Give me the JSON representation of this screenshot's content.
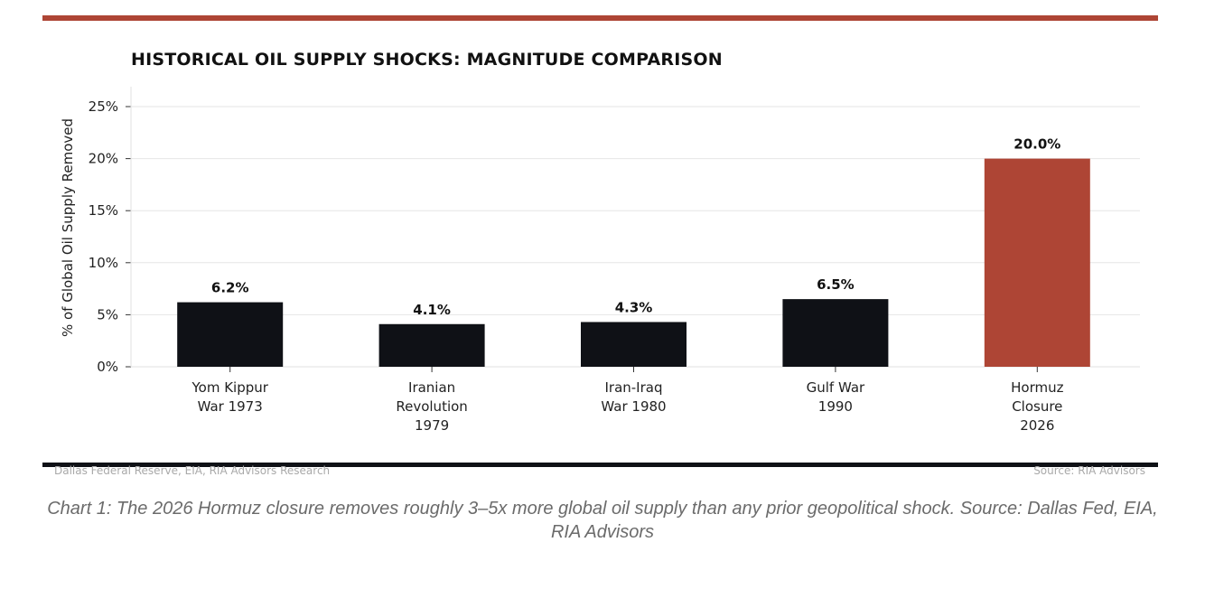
{
  "colors": {
    "accent_rule": "#ae4535",
    "bar_dark": "#0f1116",
    "bar_highlight": "#ae4535",
    "bottom_rule": "#0f1116",
    "grid": "#e6e6e6"
  },
  "chart_data": {
    "type": "bar",
    "title": "HISTORICAL OIL SUPPLY SHOCKS: MAGNITUDE COMPARISON",
    "xlabel": "",
    "ylabel": "% of Global Oil Supply Removed",
    "ylim": [
      0,
      25
    ],
    "yticks": [
      "0%",
      "5%",
      "10%",
      "15%",
      "20%",
      "25%"
    ],
    "ytick_values": [
      0,
      5,
      10,
      15,
      20,
      25
    ],
    "grid": true,
    "categories": [
      [
        "Yom Kippur",
        "War 1973"
      ],
      [
        "Iranian",
        "Revolution",
        "1979"
      ],
      [
        "Iran-Iraq",
        "War 1980"
      ],
      [
        "Gulf War",
        "1990"
      ],
      [
        "Hormuz",
        "Closure",
        "2026"
      ]
    ],
    "values": [
      6.2,
      4.1,
      4.3,
      6.5,
      20.0
    ],
    "value_labels": [
      "6.2%",
      "4.1%",
      "4.3%",
      "6.5%",
      "20.0%"
    ],
    "highlight_index": 4
  },
  "footer": {
    "left": "Dallas Federal Reserve, EIA, RIA Advisors Research",
    "right": "Source: RIA Advisors"
  },
  "caption": "Chart 1: The 2026 Hormuz closure removes roughly 3–5x more global oil supply than any prior geopolitical shock.  Source: Dallas Fed, EIA, RIA Advisors"
}
